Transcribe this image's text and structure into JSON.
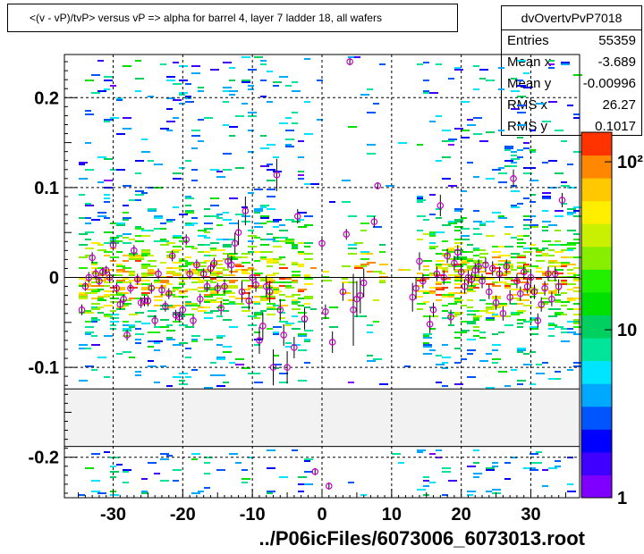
{
  "title": "<(v - vP)/tvP> versus   vP => alpha for barrel 4, layer 7 ladder 18, all wafers",
  "stats": {
    "name": "dvOvertvPvP7018",
    "rows": [
      {
        "label": "Entries",
        "value": "55359"
      },
      {
        "label": "Mean x",
        "value": "-3.689"
      },
      {
        "label": "Mean y",
        "value": "-0.00996"
      },
      {
        "label": "RMS x",
        "value": "26.27"
      },
      {
        "label": "RMS y",
        "value": "0.1017"
      }
    ]
  },
  "footer": "../P06icFiles/6073006_6073013.root",
  "colors": {
    "marker": "#cc00cc",
    "palette": [
      "#7f00ff",
      "#3f00ff",
      "#0000ff",
      "#0055ff",
      "#00a8ff",
      "#00e5ff",
      "#00e59a",
      "#00d060",
      "#00e000",
      "#22ee00",
      "#88ee00",
      "#c8f000",
      "#ffee00",
      "#ffc800",
      "#ff8800",
      "#ff3300"
    ]
  },
  "chart_data": {
    "type": "scatter",
    "title": "<(v - vP)/tvP> versus   vP => alpha for barrel 4, layer 7 ladder 18, all wafers",
    "xlabel": "",
    "ylabel": "",
    "xlim": [
      -37,
      37
    ],
    "ylim": [
      -0.245,
      0.248
    ],
    "xticks": [
      -30,
      -20,
      -10,
      0,
      10,
      20,
      30
    ],
    "yticks": [
      -0.2,
      -0.1,
      0,
      0.1,
      0.2
    ],
    "xtick_labels": [
      "-30",
      "-20",
      "-10",
      "0",
      "10",
      "20",
      "30"
    ],
    "ytick_labels": [
      "-0.2",
      "-0.1",
      "0",
      "0.1",
      "0.2"
    ],
    "grid": true,
    "colorbar": {
      "scale": "log",
      "labels": [
        {
          "value": 1,
          "text": "1"
        },
        {
          "value": 10,
          "text": "10"
        },
        {
          "value": 100,
          "text": "10²"
        }
      ]
    },
    "gap_band_y": [
      -0.188,
      -0.124
    ],
    "profile_points": [
      {
        "x": -34.5,
        "y": -0.036,
        "e": 0.006
      },
      {
        "x": -34.0,
        "y": -0.01,
        "e": 0.005
      },
      {
        "x": -33.5,
        "y": 0.0,
        "e": 0.006
      },
      {
        "x": -33.0,
        "y": 0.022,
        "e": 0.006
      },
      {
        "x": -32.5,
        "y": 0.004,
        "e": 0.006
      },
      {
        "x": -32.0,
        "y": -0.004,
        "e": 0.005
      },
      {
        "x": -31.5,
        "y": 0.006,
        "e": 0.005
      },
      {
        "x": -31.0,
        "y": 0.008,
        "e": 0.005
      },
      {
        "x": -30.5,
        "y": 0.0,
        "e": 0.006
      },
      {
        "x": -30.0,
        "y": 0.036,
        "e": 0.006
      },
      {
        "x": -29.5,
        "y": -0.012,
        "e": 0.006
      },
      {
        "x": -29.0,
        "y": -0.03,
        "e": 0.006
      },
      {
        "x": -28.5,
        "y": -0.024,
        "e": 0.005
      },
      {
        "x": -28.0,
        "y": -0.064,
        "e": 0.006
      },
      {
        "x": -27.5,
        "y": -0.012,
        "e": 0.006
      },
      {
        "x": -27.0,
        "y": 0.03,
        "e": 0.006
      },
      {
        "x": -26.5,
        "y": -0.002,
        "e": 0.006
      },
      {
        "x": -26.0,
        "y": -0.028,
        "e": 0.006
      },
      {
        "x": -25.5,
        "y": -0.026,
        "e": 0.006
      },
      {
        "x": -25.0,
        "y": -0.026,
        "e": 0.006
      },
      {
        "x": -24.5,
        "y": -0.012,
        "e": 0.006
      },
      {
        "x": -24.0,
        "y": -0.048,
        "e": 0.006
      },
      {
        "x": -23.5,
        "y": 0.004,
        "e": 0.006
      },
      {
        "x": -23.0,
        "y": -0.014,
        "e": 0.006
      },
      {
        "x": -22.5,
        "y": -0.032,
        "e": 0.006
      },
      {
        "x": -22.0,
        "y": -0.018,
        "e": 0.006
      },
      {
        "x": -21.5,
        "y": 0.024,
        "e": 0.006
      },
      {
        "x": -21.0,
        "y": -0.042,
        "e": 0.006
      },
      {
        "x": -20.5,
        "y": -0.044,
        "e": 0.006
      },
      {
        "x": -20.0,
        "y": -0.036,
        "e": 0.006
      },
      {
        "x": -19.5,
        "y": 0.042,
        "e": 0.006
      },
      {
        "x": -19.0,
        "y": 0.004,
        "e": 0.006
      },
      {
        "x": -18.5,
        "y": -0.048,
        "e": 0.006
      },
      {
        "x": -18.0,
        "y": 0.014,
        "e": 0.006
      },
      {
        "x": -17.5,
        "y": -0.024,
        "e": 0.006
      },
      {
        "x": -17.0,
        "y": 0.004,
        "e": 0.006
      },
      {
        "x": -16.5,
        "y": -0.01,
        "e": 0.006
      },
      {
        "x": -16.0,
        "y": 0.01,
        "e": 0.006
      },
      {
        "x": -15.5,
        "y": 0.016,
        "e": 0.006
      },
      {
        "x": -15.0,
        "y": -0.012,
        "e": 0.006
      },
      {
        "x": -14.5,
        "y": -0.034,
        "e": 0.008
      },
      {
        "x": -14.0,
        "y": -0.01,
        "e": 0.008
      },
      {
        "x": -13.5,
        "y": 0.018,
        "e": 0.008
      },
      {
        "x": -13.0,
        "y": 0.014,
        "e": 0.01
      },
      {
        "x": -12.5,
        "y": 0.038,
        "e": 0.012
      },
      {
        "x": -12.0,
        "y": 0.05,
        "e": 0.014
      },
      {
        "x": -11.5,
        "y": -0.016,
        "e": 0.012
      },
      {
        "x": -11.0,
        "y": 0.074,
        "e": 0.016
      },
      {
        "x": -10.5,
        "y": -0.026,
        "e": 0.01
      },
      {
        "x": -10.0,
        "y": 0.0,
        "e": 0.008
      },
      {
        "x": -9.5,
        "y": -0.008,
        "e": 0.008
      },
      {
        "x": -9.0,
        "y": -0.07,
        "e": 0.015
      },
      {
        "x": -8.5,
        "y": -0.054,
        "e": 0.015
      },
      {
        "x": -8.0,
        "y": -0.01,
        "e": 0.012
      },
      {
        "x": -7.5,
        "y": -0.016,
        "e": 0.012
      },
      {
        "x": -7.0,
        "y": -0.1,
        "e": 0.02
      },
      {
        "x": -6.5,
        "y": 0.114,
        "e": 0.018
      },
      {
        "x": -6.0,
        "y": -0.036,
        "e": 0.012
      },
      {
        "x": -5.5,
        "y": -0.064,
        "e": 0.012
      },
      {
        "x": -5.0,
        "y": -0.1,
        "e": 0.018
      },
      {
        "x": -4.0,
        "y": -0.078,
        "e": 0.012
      },
      {
        "x": -3.5,
        "y": 0.068,
        "e": 0.008
      },
      {
        "x": -2.5,
        "y": -0.046,
        "e": 0.012
      },
      {
        "x": 0.0,
        "y": 0.038,
        "e": 0.008
      },
      {
        "x": 0.5,
        "y": -0.038,
        "e": 0.008
      },
      {
        "x": 1.5,
        "y": -0.072,
        "e": 0.012
      },
      {
        "x": 1.0,
        "y": -0.232,
        "e": 0.004
      },
      {
        "x": -1.0,
        "y": -0.216,
        "e": 0.004
      },
      {
        "x": 3.0,
        "y": -0.016,
        "e": 0.01
      },
      {
        "x": 3.5,
        "y": 0.048,
        "e": 0.006
      },
      {
        "x": 4.0,
        "y": 0.24,
        "e": 0.004
      },
      {
        "x": 4.5,
        "y": -0.036,
        "e": 0.04
      },
      {
        "x": 5.0,
        "y": -0.024,
        "e": 0.02
      },
      {
        "x": 5.5,
        "y": -0.02,
        "e": 0.02
      },
      {
        "x": 6.0,
        "y": -0.006,
        "e": 0.016
      },
      {
        "x": 7.5,
        "y": 0.062,
        "e": 0.006
      },
      {
        "x": 8.0,
        "y": 0.102,
        "e": 0.004
      },
      {
        "x": 13.0,
        "y": -0.022,
        "e": 0.016
      },
      {
        "x": 13.5,
        "y": -0.012,
        "e": 0.012
      },
      {
        "x": 14.0,
        "y": 0.018,
        "e": 0.01
      },
      {
        "x": 14.5,
        "y": -0.004,
        "e": 0.008
      },
      {
        "x": 15.5,
        "y": -0.052,
        "e": 0.01
      },
      {
        "x": 16.0,
        "y": -0.036,
        "e": 0.008
      },
      {
        "x": 16.5,
        "y": 0.004,
        "e": 0.008
      },
      {
        "x": 17.0,
        "y": 0.08,
        "e": 0.012
      },
      {
        "x": 17.5,
        "y": 0.0,
        "e": 0.008
      },
      {
        "x": 18.0,
        "y": 0.024,
        "e": 0.008
      },
      {
        "x": 18.5,
        "y": -0.044,
        "e": 0.008
      },
      {
        "x": 19.0,
        "y": 0.016,
        "e": 0.008
      },
      {
        "x": 19.5,
        "y": 0.028,
        "e": 0.008
      },
      {
        "x": 20.0,
        "y": 0.006,
        "e": 0.008
      },
      {
        "x": 20.5,
        "y": -0.01,
        "e": 0.008
      },
      {
        "x": 21.0,
        "y": 0.0,
        "e": 0.008
      },
      {
        "x": 21.5,
        "y": -0.002,
        "e": 0.008
      },
      {
        "x": 22.0,
        "y": 0.008,
        "e": 0.008
      },
      {
        "x": 22.5,
        "y": 0.012,
        "e": 0.008
      },
      {
        "x": 23.0,
        "y": -0.004,
        "e": 0.008
      },
      {
        "x": 23.5,
        "y": 0.014,
        "e": 0.008
      },
      {
        "x": 24.0,
        "y": -0.016,
        "e": 0.008
      },
      {
        "x": 24.5,
        "y": 0.01,
        "e": 0.008
      },
      {
        "x": 25.0,
        "y": -0.028,
        "e": 0.008
      },
      {
        "x": 25.5,
        "y": 0.004,
        "e": 0.008
      },
      {
        "x": 26.0,
        "y": -0.04,
        "e": 0.008
      },
      {
        "x": 26.5,
        "y": 0.012,
        "e": 0.008
      },
      {
        "x": 27.0,
        "y": -0.022,
        "e": 0.008
      },
      {
        "x": 27.5,
        "y": 0.11,
        "e": 0.01
      },
      {
        "x": 28.0,
        "y": -0.004,
        "e": 0.008
      },
      {
        "x": 28.5,
        "y": -0.018,
        "e": 0.008
      },
      {
        "x": 29.0,
        "y": 0.006,
        "e": 0.008
      },
      {
        "x": 29.5,
        "y": -0.01,
        "e": 0.008
      },
      {
        "x": 30.0,
        "y": 0.0,
        "e": 0.008
      },
      {
        "x": 30.5,
        "y": -0.016,
        "e": 0.008
      },
      {
        "x": 31.0,
        "y": -0.048,
        "e": 0.008
      },
      {
        "x": 31.5,
        "y": -0.03,
        "e": 0.008
      },
      {
        "x": 32.0,
        "y": -0.012,
        "e": 0.008
      },
      {
        "x": 32.5,
        "y": 0.004,
        "e": 0.008
      },
      {
        "x": 33.0,
        "y": -0.024,
        "e": 0.008
      },
      {
        "x": 33.5,
        "y": 0.004,
        "e": 0.008
      },
      {
        "x": 34.0,
        "y": -0.01,
        "e": 0.008
      },
      {
        "x": 34.5,
        "y": 0.086,
        "e": 0.008
      }
    ]
  }
}
